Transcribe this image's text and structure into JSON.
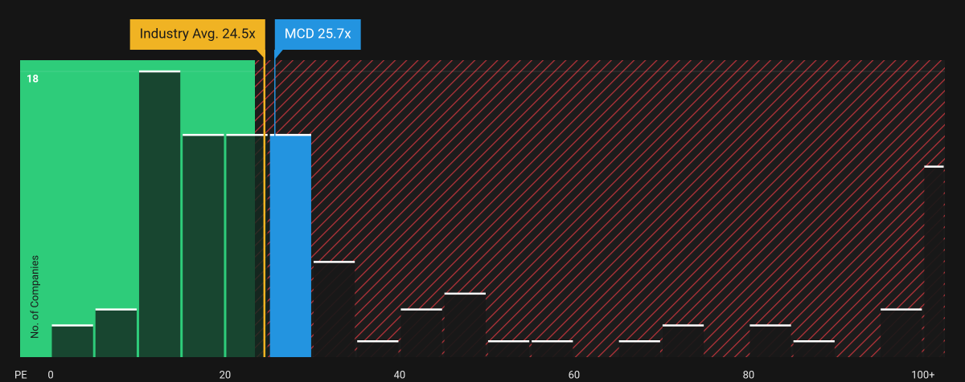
{
  "chart_data": {
    "type": "histogram",
    "x_label": "PE",
    "y_label": "No. of Companies",
    "bins": [
      0,
      5,
      10,
      15,
      20,
      25,
      30,
      35,
      40,
      45,
      50,
      55,
      60,
      65,
      70,
      75,
      80,
      85,
      90,
      95,
      100,
      102.5
    ],
    "values": [
      2,
      3,
      18,
      14,
      14,
      14,
      6,
      1,
      3,
      4,
      1,
      1,
      0,
      1,
      2,
      0,
      2,
      1,
      0,
      3,
      12
    ],
    "xlim": [
      -3.5,
      102.5
    ],
    "xticks": [
      0,
      20,
      40,
      60,
      80,
      {
        "value": 100,
        "label": "100+"
      }
    ],
    "ylim": [
      0,
      18
    ],
    "yticks": [
      18
    ],
    "annotations": [
      {
        "label": "Industry Avg. 24.5x",
        "value": 24.5,
        "color": "#f0b323"
      },
      {
        "label": "MCD 25.7x",
        "value": 25.7,
        "color": "#2394e0"
      }
    ]
  }
}
